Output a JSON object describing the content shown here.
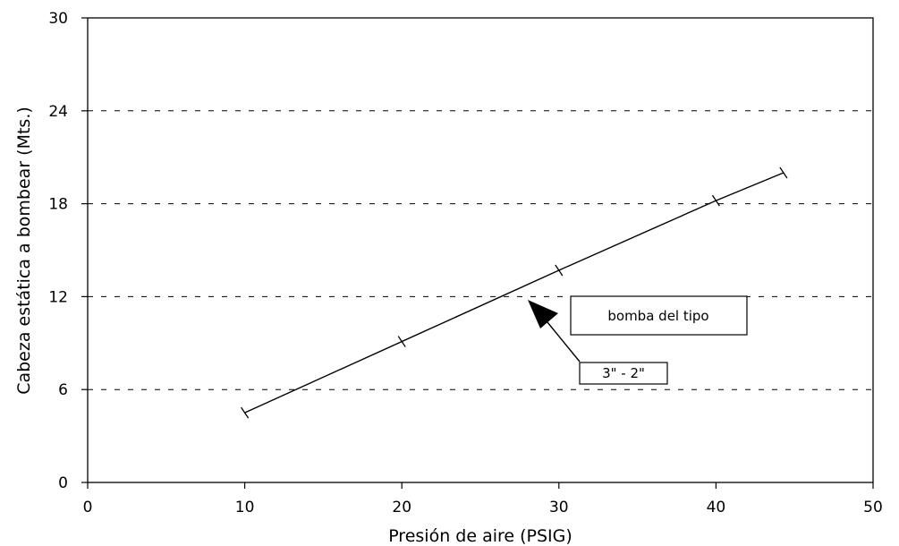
{
  "chart_data": {
    "type": "line",
    "title": "",
    "xlabel": "Presión de aire (PSIG)",
    "ylabel": "Cabeza estática a bombear (Mts.)",
    "xlim": [
      0,
      50
    ],
    "ylim": [
      0,
      30
    ],
    "x_ticks": [
      "0",
      "10",
      "20",
      "30",
      "40",
      "50"
    ],
    "y_ticks": [
      "0",
      "6",
      "12",
      "18",
      "24",
      "30"
    ],
    "grid": "horizontal dashed",
    "legend": "none",
    "series": [
      {
        "x": [
          10,
          20,
          30,
          40,
          44.3
        ],
        "y": [
          4.5,
          9.1,
          13.7,
          18.2,
          20.0
        ],
        "marker": "tick"
      }
    ],
    "annotations": [
      {
        "text": "bomba del tipo"
      },
      {
        "text": "3\" - 2\""
      }
    ]
  }
}
